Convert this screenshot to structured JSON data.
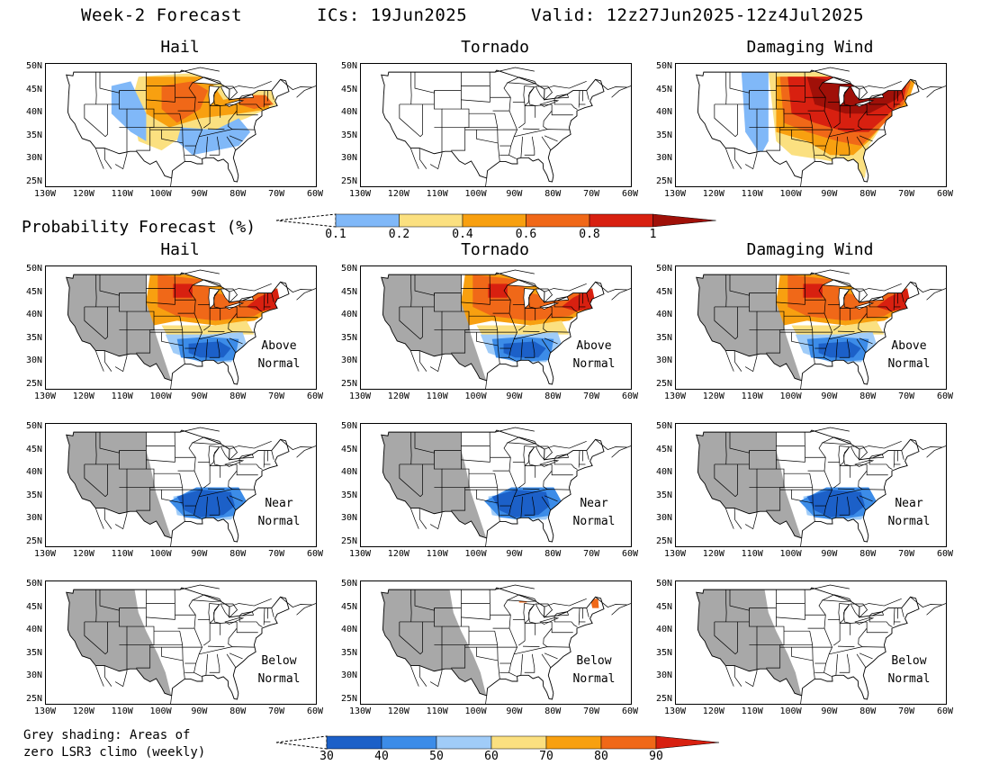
{
  "header": {
    "title": "Week-2 Forecast",
    "ics": "ICs: 19Jun2025",
    "valid": "Valid: 12z27Jun2025-12z4Jul2025"
  },
  "columns": [
    "Hail",
    "Tornado",
    "Damaging Wind"
  ],
  "probability_label": "Probability Forecast (%)",
  "prob_colorbar": {
    "labels": [
      "0.1",
      "0.2",
      "0.4",
      "0.6",
      "0.8",
      "1"
    ],
    "colors": [
      "#80b8f8",
      "#fbe080",
      "#f8a010",
      "#f06818",
      "#d82010",
      "#a01008"
    ]
  },
  "percentile_colorbar": {
    "labels": [
      "30",
      "40",
      "50",
      "60",
      "70",
      "80",
      "90"
    ],
    "colors": [
      "#1c60c8",
      "#3c8ce8",
      "#a0ccf8",
      "#fbe080",
      "#f8a010",
      "#f06818",
      "#d82010"
    ]
  },
  "axes": {
    "lat_labels": [
      "50N",
      "45N",
      "40N",
      "35N",
      "30N",
      "25N"
    ],
    "lon_labels": [
      "130W",
      "120W",
      "110W",
      "100W",
      "90W",
      "80W",
      "70W",
      "60W"
    ]
  },
  "row_annotations": [
    {
      "line1": "Above",
      "line2": "Normal"
    },
    {
      "line1": "Near",
      "line2": "Normal"
    },
    {
      "line1": "Below",
      "line2": "Normal"
    }
  ],
  "footnote": {
    "line1": "Grey shading: Areas of",
    "line2": "zero LSR3 climo (weekly)"
  }
}
